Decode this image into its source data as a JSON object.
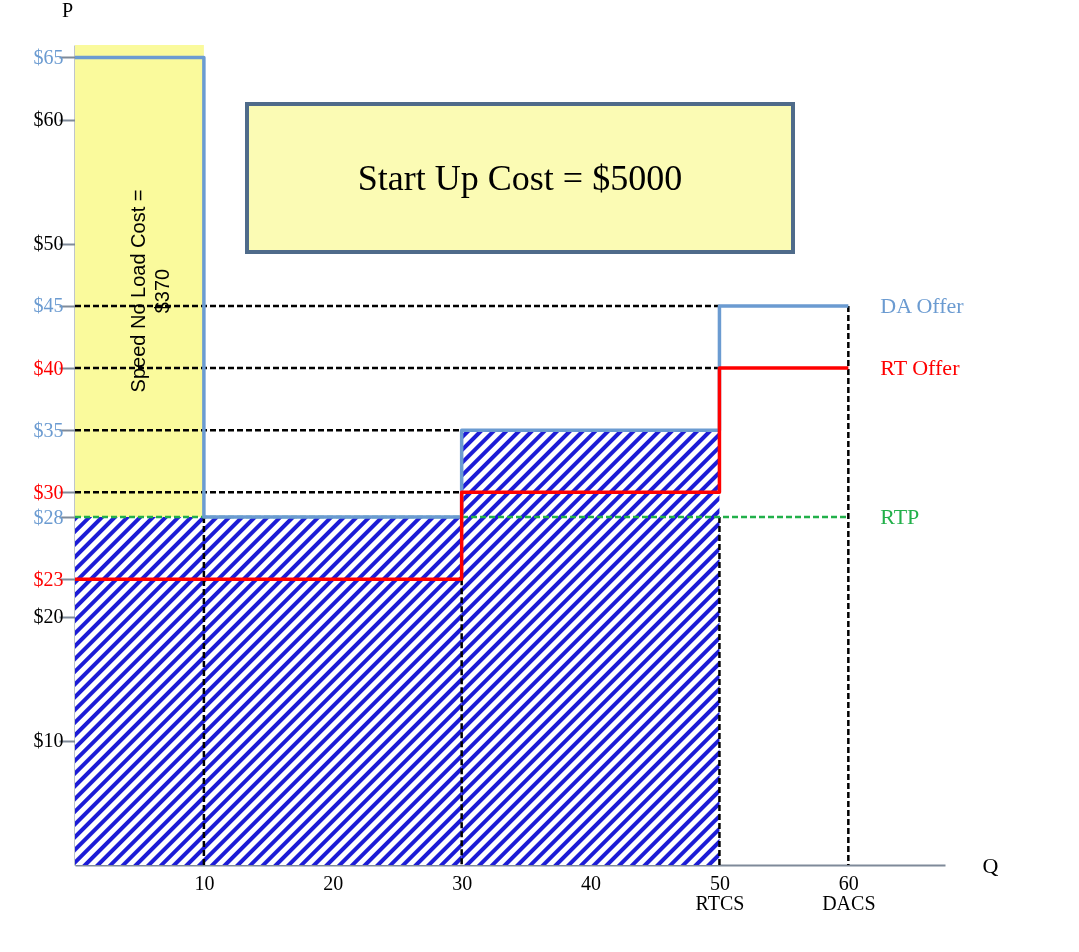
{
  "chart_data": {
    "type": "step",
    "xlabel": "Q",
    "ylabel": "P",
    "xlim": [
      0,
      67.5
    ],
    "ylim": [
      0,
      66
    ],
    "xticks": [
      10,
      20,
      30,
      40,
      {
        "value": 50,
        "label": "50\nRTCS"
      },
      {
        "value": 60,
        "label": "60\nDACS"
      }
    ],
    "yticks": [
      {
        "value": 10,
        "label": "$10"
      },
      {
        "value": 20,
        "label": "$20"
      },
      {
        "value": 23,
        "label": "$23"
      },
      {
        "value": 28,
        "label": "$28"
      },
      {
        "value": 30,
        "label": "$30"
      },
      {
        "value": 35,
        "label": "$35"
      },
      {
        "value": 40,
        "label": "$40"
      },
      {
        "value": 45,
        "label": "$45"
      },
      {
        "value": 50,
        "label": "$50"
      },
      {
        "value": 60,
        "label": "$60"
      },
      {
        "value": 65,
        "label": "$65"
      }
    ],
    "bands": [
      {
        "axis": "x",
        "from": 0,
        "to": 10,
        "label": "Speed No Load Cost  = $370",
        "color": "#fafa9c"
      }
    ],
    "annotations": [
      "Start Up Cost = $5000"
    ],
    "series": [
      {
        "type": "area",
        "color": "#1c1cd6",
        "x": [
          0,
          30,
          50
        ],
        "values": [
          28,
          35,
          35
        ]
      },
      {
        "type": "line",
        "color": "#000000",
        "line_style": "dashed",
        "x": [
          0,
          50
        ],
        "values": [
          45,
          45
        ]
      },
      {
        "type": "line",
        "color": "#000000",
        "line_style": "dashed",
        "x": [
          0,
          50
        ],
        "values": [
          40,
          40
        ]
      },
      {
        "type": "line",
        "color": "#000000",
        "line_style": "dashed",
        "x": [
          0,
          30
        ],
        "values": [
          35,
          35
        ]
      },
      {
        "type": "line",
        "color": "#000000",
        "line_style": "dashed",
        "x": [
          0,
          30
        ],
        "values": [
          30,
          30
        ]
      },
      {
        "type": "line",
        "color": "#000000",
        "line_style": "dashed",
        "x": [
          10,
          10
        ],
        "values": [
          28,
          0
        ]
      },
      {
        "type": "line",
        "color": "#000000",
        "line_style": "dashed",
        "x": [
          30,
          30
        ],
        "values": [
          23,
          0
        ]
      },
      {
        "type": "line",
        "color": "#000000",
        "line_style": "dashed",
        "x": [
          50,
          50
        ],
        "values": [
          28,
          0
        ]
      },
      {
        "type": "line",
        "color": "#000000",
        "line_style": "dashed",
        "x": [
          60,
          60
        ],
        "values": [
          45,
          0
        ]
      },
      {
        "name": "DA Offer",
        "color": "#6b9bd1",
        "x": [
          0,
          10,
          30,
          50,
          60
        ],
        "values": [
          65,
          28,
          35,
          45,
          45
        ]
      },
      {
        "name": "RT Offer",
        "color": "#ff0000",
        "x": [
          0,
          30,
          50,
          60
        ],
        "values": [
          23,
          30,
          40,
          40
        ]
      },
      {
        "name": "RTP",
        "type": "line",
        "color": "#22b04a",
        "line_style": "dashed",
        "x": [
          0,
          60
        ],
        "values": [
          28,
          28
        ]
      }
    ]
  }
}
